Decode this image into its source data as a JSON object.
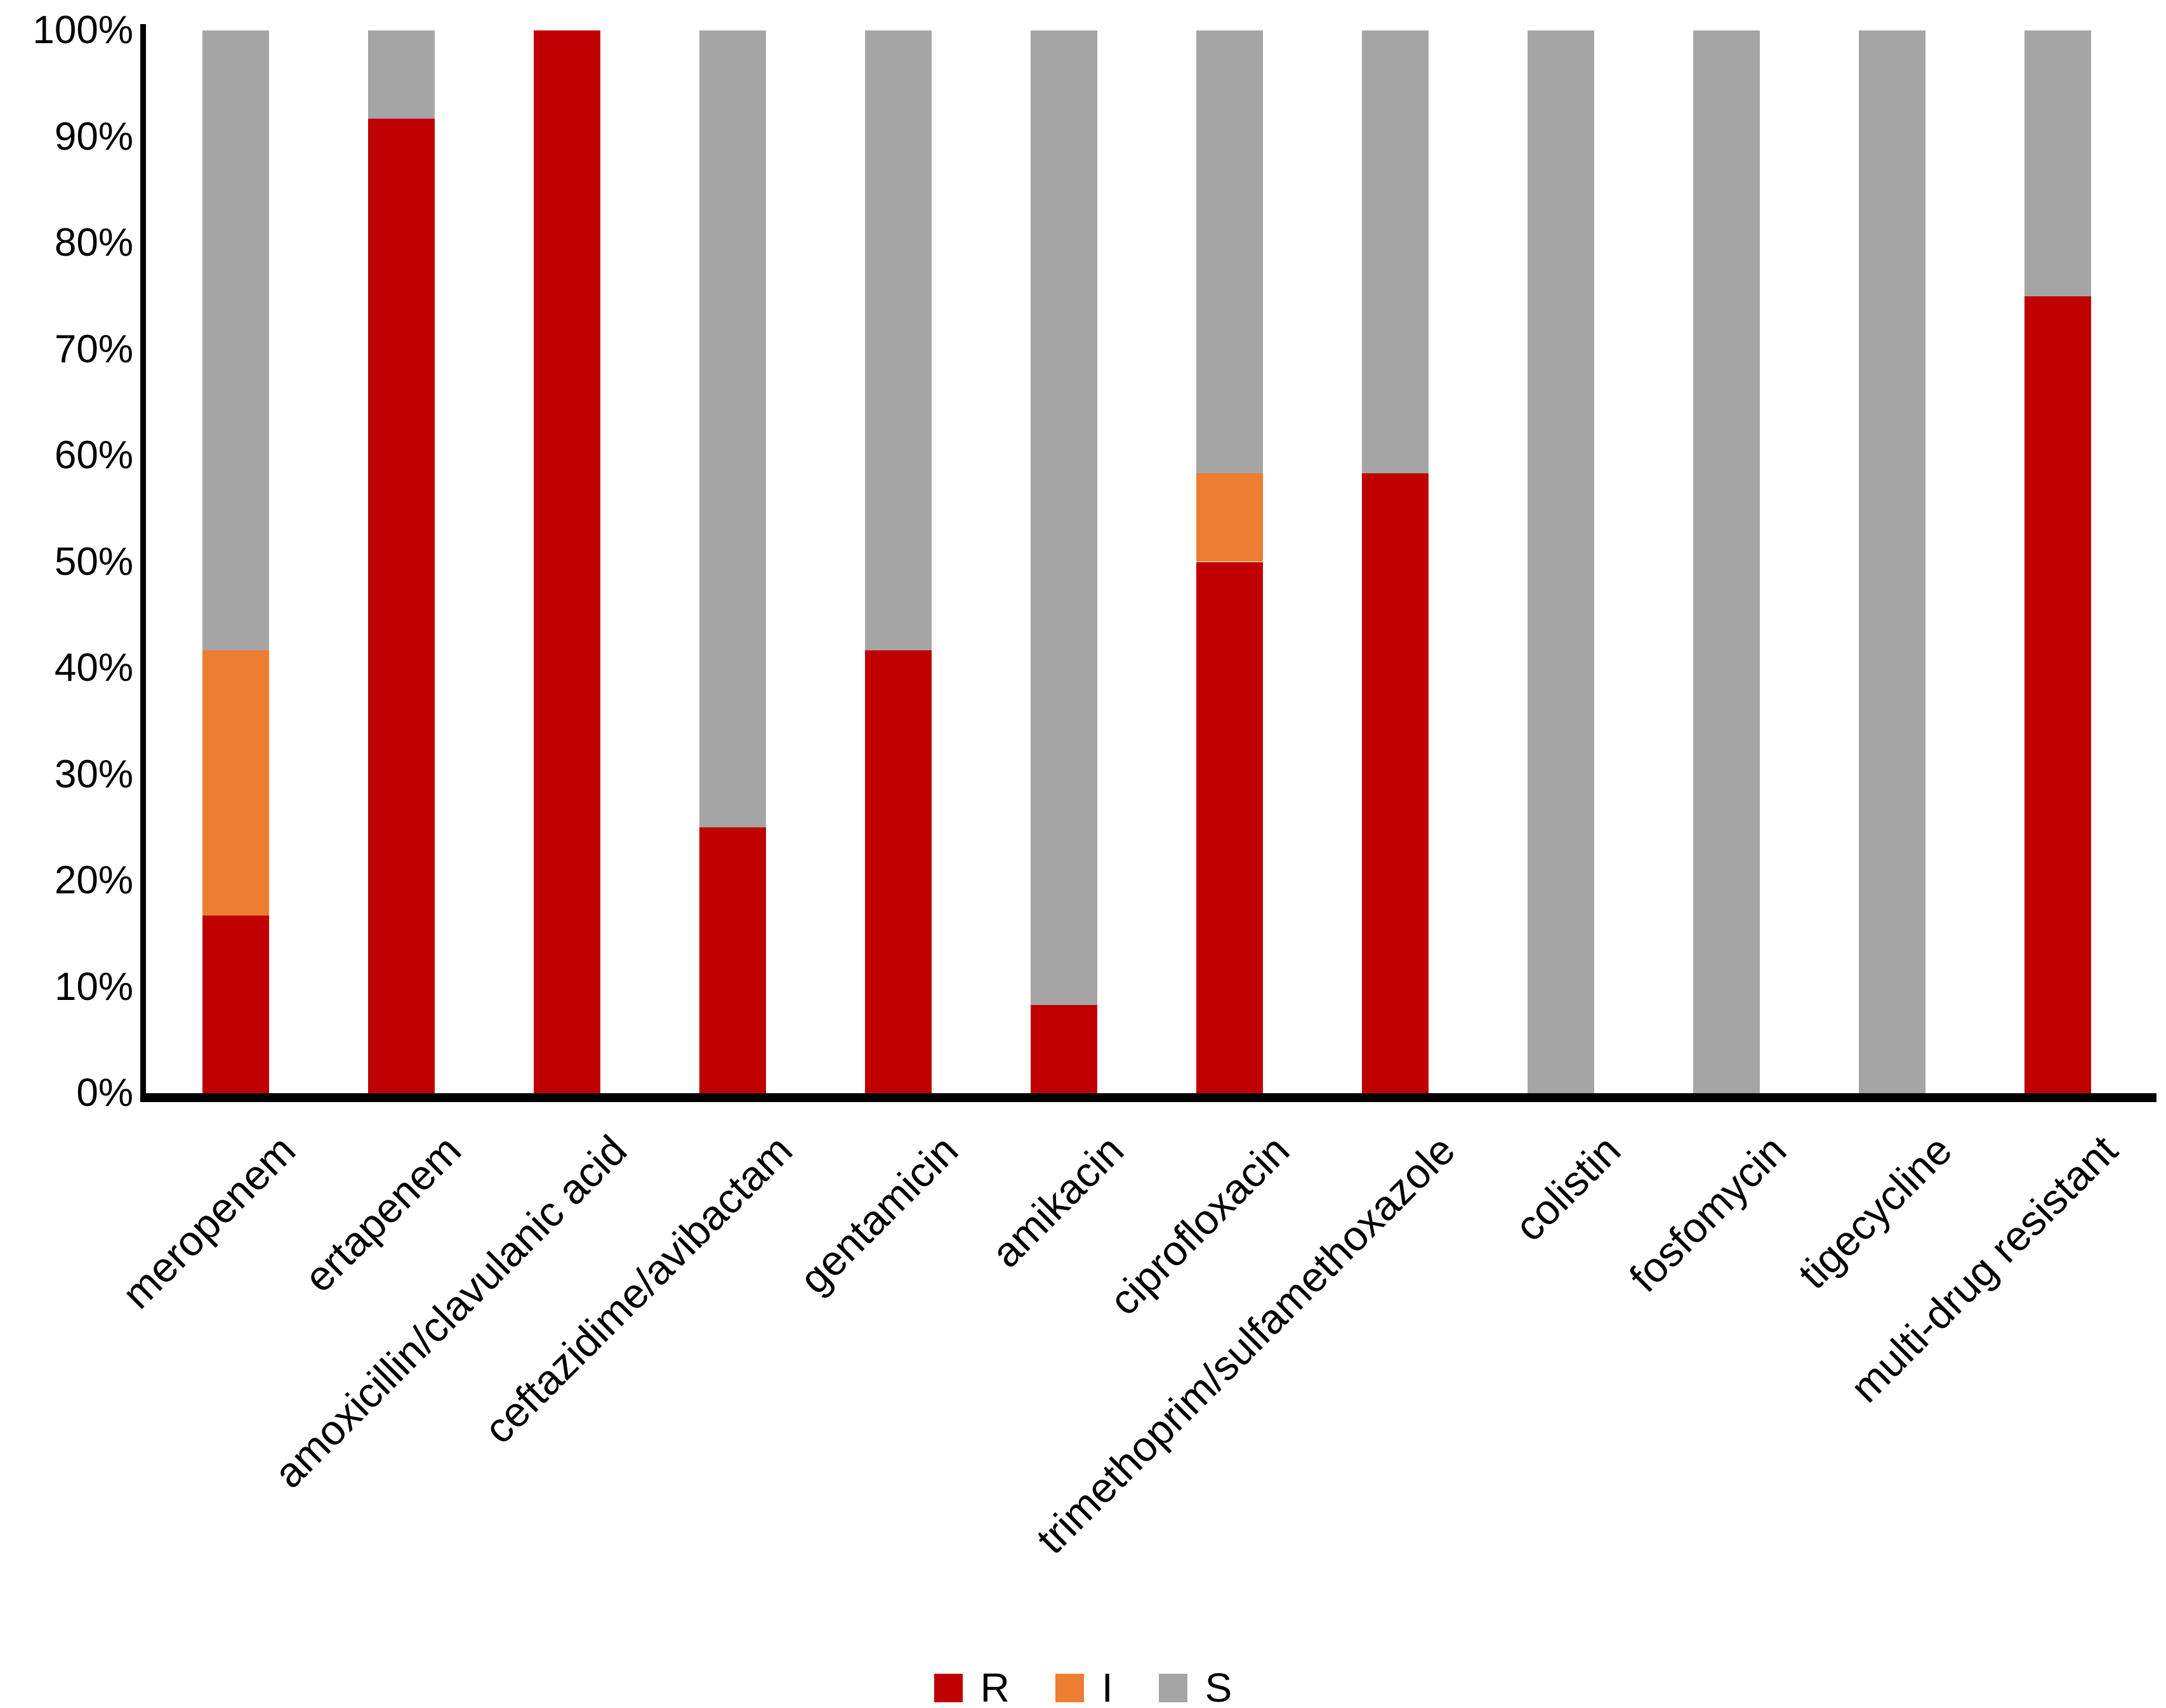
{
  "chart_data": {
    "type": "bar",
    "stacked": true,
    "orientation": "vertical",
    "title": "",
    "xlabel": "",
    "ylabel": "",
    "categories": [
      "meropenem",
      "ertapenem",
      "amoxicillin/clavulanic acid",
      "ceftazidime/avibactam",
      "gentamicin",
      "amikacin",
      "ciprofloxacin",
      "trimethoprim/sulfamethoxazole",
      "colistin",
      "fosfomycin",
      "tigecycline",
      "multi-drug resistant"
    ],
    "series": [
      {
        "name": "R",
        "color": "#C00000",
        "values": [
          16.7,
          91.7,
          100,
          25,
          41.7,
          8.3,
          50,
          58.3,
          0,
          0,
          0,
          75
        ]
      },
      {
        "name": "I",
        "color": "#ED7D31",
        "values": [
          25,
          0,
          0,
          0,
          0,
          0,
          8.3,
          0,
          0,
          0,
          0,
          0
        ]
      },
      {
        "name": "S",
        "color": "#A5A5A5",
        "values": [
          58.3,
          8.3,
          0,
          75,
          58.3,
          91.7,
          41.7,
          41.7,
          100,
          100,
          100,
          25
        ]
      }
    ],
    "y_axis": {
      "ticks": [
        "0%",
        "10%",
        "20%",
        "30%",
        "40%",
        "50%",
        "60%",
        "70%",
        "80%",
        "90%",
        "100%"
      ],
      "min": 0,
      "max": 100,
      "gridlines": false
    },
    "legend": {
      "position": "bottom",
      "entries": [
        "R",
        "I",
        "S"
      ]
    },
    "axis_color": "#000000",
    "background_color": "#FFFFFF"
  }
}
